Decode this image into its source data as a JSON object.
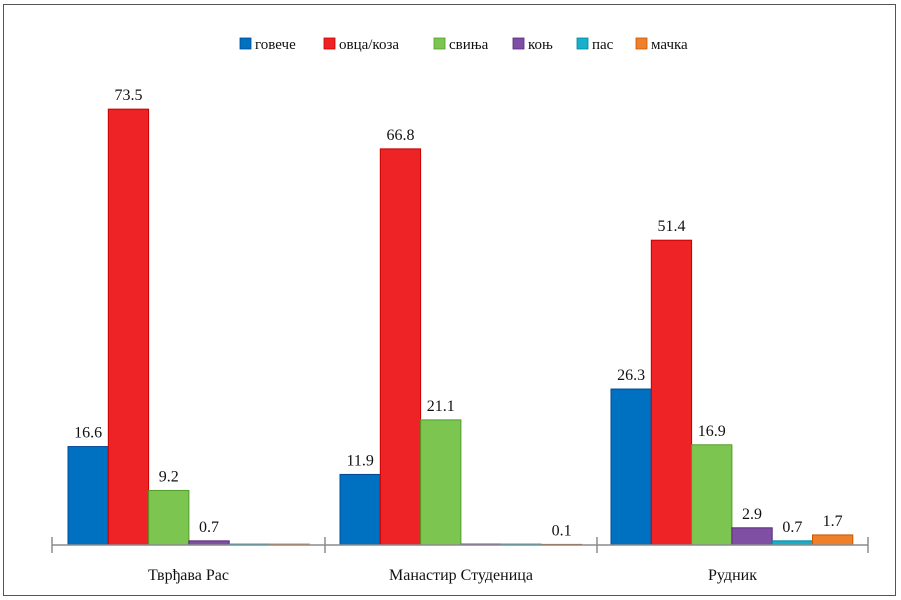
{
  "chart_data": {
    "type": "bar",
    "categories": [
      "Тврђава Рас",
      "Манастир Студеница",
      "Рудник"
    ],
    "series": [
      {
        "name": "говече",
        "color": "#0070C0",
        "values": [
          16.6,
          11.9,
          26.3
        ]
      },
      {
        "name": "овца/коза",
        "color": "#EE2326",
        "values": [
          73.5,
          66.8,
          51.4
        ]
      },
      {
        "name": "свиња",
        "color": "#7CC551",
        "values": [
          9.2,
          21.1,
          16.9
        ]
      },
      {
        "name": "коњ",
        "color": "#7F4FA3",
        "values": [
          0.7,
          0.0,
          2.9
        ]
      },
      {
        "name": "пас",
        "color": "#17AFC9",
        "values": [
          0.0,
          0.0,
          0.7
        ]
      },
      {
        "name": "мачка",
        "color": "#F07F2A",
        "values": [
          0.0,
          0.1,
          1.7
        ]
      }
    ],
    "data_labels": [
      [
        "16.6",
        "73.5",
        "9.2",
        "0.7",
        "",
        ""
      ],
      [
        "11.9",
        "66.8",
        "21.1",
        "",
        "",
        "0.1"
      ],
      [
        "26.3",
        "51.4",
        "16.9",
        "2.9",
        "0.7",
        "1.7"
      ]
    ],
    "ylim": [
      0,
      80
    ],
    "legend_position": "top-center",
    "grid": false,
    "title": "",
    "xlabel": "",
    "ylabel": ""
  }
}
